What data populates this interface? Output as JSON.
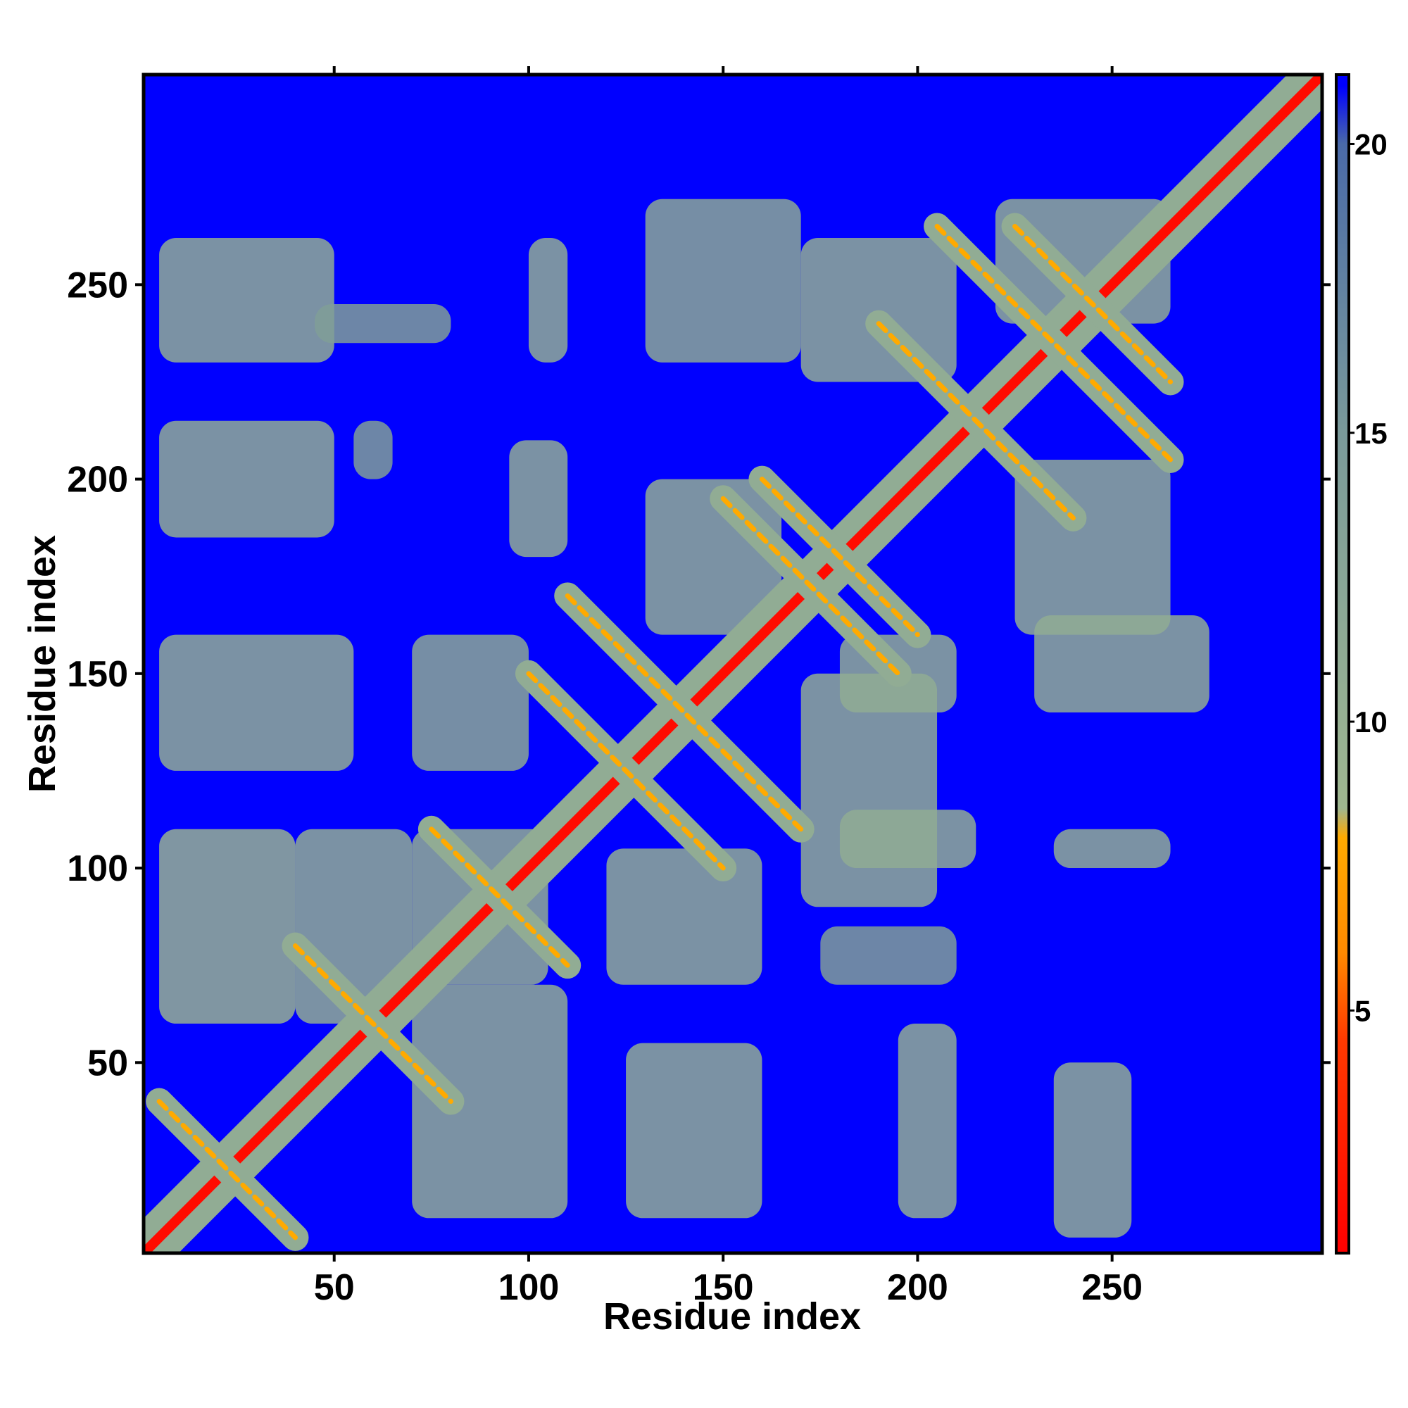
{
  "chart_data": {
    "type": "heatmap",
    "title": "",
    "xlabel": "Residue index",
    "ylabel": "Residue index",
    "x_range": [
      1,
      304
    ],
    "y_range": [
      1,
      304
    ],
    "x_ticks": [
      50,
      100,
      150,
      200,
      250
    ],
    "y_ticks": [
      50,
      100,
      150,
      200,
      250
    ],
    "colorbar": {
      "ticks": [
        5,
        10,
        15,
        20
      ],
      "range": [
        0.8,
        21.2
      ],
      "stops": [
        {
          "value": 0.8,
          "color": "#ff0000"
        },
        {
          "value": 4.5,
          "color": "#ff3a00"
        },
        {
          "value": 6.0,
          "color": "#ff8a00"
        },
        {
          "value": 8.0,
          "color": "#ffaa00"
        },
        {
          "value": 8.5,
          "color": "#9fb790"
        },
        {
          "value": 15.0,
          "color": "#7a9a9a"
        },
        {
          "value": 20.0,
          "color": "#4a6aa8"
        },
        {
          "value": 21.0,
          "color": "#0000ff"
        },
        {
          "value": 21.2,
          "color": "#0000ff"
        }
      ]
    },
    "background_value": 21,
    "background_color": "#0000ff",
    "contact_bands": [
      {
        "from": [
          2,
          2
        ],
        "to": [
          304,
          304
        ],
        "value": 1.5
      },
      {
        "from": [
          5,
          40
        ],
        "to": [
          40,
          5
        ],
        "value": 8
      },
      {
        "from": [
          40,
          80
        ],
        "to": [
          80,
          40
        ],
        "value": 8
      },
      {
        "from": [
          75,
          110
        ],
        "to": [
          110,
          75
        ],
        "value": 8
      },
      {
        "from": [
          100,
          150
        ],
        "to": [
          150,
          100
        ],
        "value": 8
      },
      {
        "from": [
          110,
          170
        ],
        "to": [
          170,
          110
        ],
        "value": 8
      },
      {
        "from": [
          150,
          195
        ],
        "to": [
          195,
          150
        ],
        "value": 8
      },
      {
        "from": [
          160,
          200
        ],
        "to": [
          200,
          160
        ],
        "value": 8
      },
      {
        "from": [
          190,
          240
        ],
        "to": [
          240,
          190
        ],
        "value": 8
      },
      {
        "from": [
          205,
          265
        ],
        "to": [
          265,
          205
        ],
        "value": 8
      },
      {
        "from": [
          225,
          265
        ],
        "to": [
          265,
          225
        ],
        "value": 8
      }
    ],
    "contact_patches": [
      {
        "x": [
          5,
          50
        ],
        "y": [
          230,
          262
        ],
        "value": 11
      },
      {
        "x": [
          45,
          80
        ],
        "y": [
          235,
          245
        ],
        "value": 14
      },
      {
        "x": [
          100,
          110
        ],
        "y": [
          230,
          262
        ],
        "value": 11
      },
      {
        "x": [
          130,
          170
        ],
        "y": [
          230,
          272
        ],
        "value": 12
      },
      {
        "x": [
          170,
          210
        ],
        "y": [
          225,
          262
        ],
        "value": 11
      },
      {
        "x": [
          220,
          265
        ],
        "y": [
          240,
          272
        ],
        "value": 11
      },
      {
        "x": [
          5,
          50
        ],
        "y": [
          185,
          215
        ],
        "value": 11
      },
      {
        "x": [
          55,
          65
        ],
        "y": [
          200,
          215
        ],
        "value": 14
      },
      {
        "x": [
          5,
          55
        ],
        "y": [
          125,
          160
        ],
        "value": 11
      },
      {
        "x": [
          70,
          100
        ],
        "y": [
          125,
          160
        ],
        "value": 12
      },
      {
        "x": [
          95,
          110
        ],
        "y": [
          180,
          210
        ],
        "value": 11
      },
      {
        "x": [
          130,
          165
        ],
        "y": [
          160,
          200
        ],
        "value": 11
      },
      {
        "x": [
          225,
          265
        ],
        "y": [
          160,
          205
        ],
        "value": 11
      },
      {
        "x": [
          230,
          275
        ],
        "y": [
          140,
          165
        ],
        "value": 11
      },
      {
        "x": [
          180,
          210
        ],
        "y": [
          140,
          160
        ],
        "value": 11
      },
      {
        "x": [
          5,
          40
        ],
        "y": [
          60,
          110
        ],
        "value": 10
      },
      {
        "x": [
          40,
          70
        ],
        "y": [
          60,
          110
        ],
        "value": 11
      },
      {
        "x": [
          70,
          105
        ],
        "y": [
          70,
          110
        ],
        "value": 11
      },
      {
        "x": [
          120,
          160
        ],
        "y": [
          70,
          105
        ],
        "value": 11
      },
      {
        "x": [
          170,
          205
        ],
        "y": [
          90,
          150
        ],
        "value": 11
      },
      {
        "x": [
          180,
          215
        ],
        "y": [
          100,
          115
        ],
        "value": 11
      },
      {
        "x": [
          235,
          265
        ],
        "y": [
          100,
          110
        ],
        "value": 11
      },
      {
        "x": [
          70,
          110
        ],
        "y": [
          10,
          70
        ],
        "value": 11
      },
      {
        "x": [
          125,
          160
        ],
        "y": [
          10,
          55
        ],
        "value": 11
      },
      {
        "x": [
          195,
          210
        ],
        "y": [
          10,
          60
        ],
        "value": 11
      },
      {
        "x": [
          235,
          255
        ],
        "y": [
          5,
          50
        ],
        "value": 11
      },
      {
        "x": [
          175,
          210
        ],
        "y": [
          70,
          85
        ],
        "value": 14
      }
    ]
  }
}
